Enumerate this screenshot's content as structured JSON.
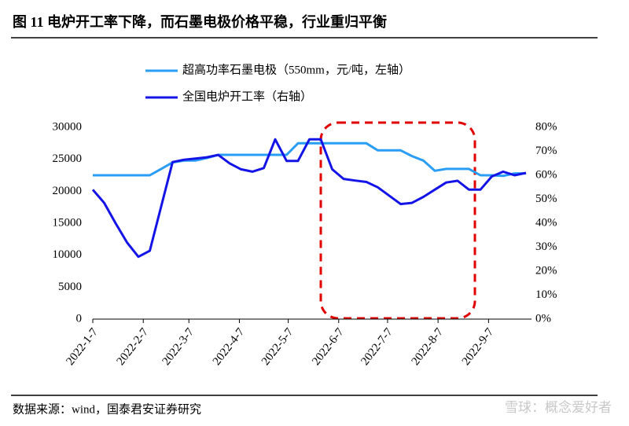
{
  "chart_data": {
    "type": "line",
    "title": "图 11 电炉开工率下降，而石墨电极价格平稳，行业重归平衡",
    "source": "数据来源：wind，国泰君安证券研究",
    "watermark": "雪球：概念爱好者",
    "x": [
      "2022-1-7",
      "2022-1-14",
      "2022-1-21",
      "2022-1-28",
      "2022-2-4",
      "2022-2-11",
      "2022-2-18",
      "2022-2-25",
      "2022-3-4",
      "2022-3-11",
      "2022-3-18",
      "2022-3-25",
      "2022-4-1",
      "2022-4-8",
      "2022-4-15",
      "2022-4-22",
      "2022-4-29",
      "2022-5-6",
      "2022-5-13",
      "2022-5-20",
      "2022-5-27",
      "2022-6-3",
      "2022-6-10",
      "2022-6-17",
      "2022-6-24",
      "2022-7-1",
      "2022-7-8",
      "2022-7-15",
      "2022-7-22",
      "2022-7-29",
      "2022-8-5",
      "2022-8-12",
      "2022-8-19",
      "2022-8-26",
      "2022-9-2",
      "2022-9-9",
      "2022-9-16",
      "2022-9-23",
      "2022-9-30"
    ],
    "xlim": [
      "2022-1-7",
      "2022-9-30"
    ],
    "xticks": [
      "2022-1-7",
      "2022-2-7",
      "2022-3-7",
      "2022-4-7",
      "2022-5-7",
      "2022-6-7",
      "2022-7-7",
      "2022-8-7",
      "2022-9-7"
    ],
    "ylim": [
      0,
      30000
    ],
    "yticks": [
      0,
      5000,
      10000,
      15000,
      20000,
      25000,
      30000
    ],
    "y2lim": [
      0,
      80
    ],
    "y2ticks": [
      {
        "value": 0,
        "label": "0%"
      },
      {
        "value": 10,
        "label": "10%"
      },
      {
        "value": 20,
        "label": "20%"
      },
      {
        "value": 30,
        "label": "30%"
      },
      {
        "value": 40,
        "label": "40%"
      },
      {
        "value": 50,
        "label": "50%"
      },
      {
        "value": 60,
        "label": "60%"
      },
      {
        "value": 70,
        "label": "70%"
      },
      {
        "value": 80,
        "label": "80%"
      }
    ],
    "series": [
      {
        "name": "超高功率石墨电极（550mm，元/吨，左轴）",
        "color": "#2a9df4",
        "values": [
          22500,
          22500,
          22500,
          22500,
          22500,
          22500,
          23500,
          24500,
          24800,
          24800,
          25200,
          25700,
          25700,
          25700,
          25700,
          25700,
          25700,
          25700,
          27500,
          27500,
          27500,
          27500,
          27500,
          27500,
          27500,
          26400,
          26400,
          26400,
          25500,
          24800,
          23200,
          23500,
          23500,
          23500,
          22500,
          22500,
          22400,
          22800,
          22800
        ]
      },
      {
        "name": "全国电炉开工率（右轴）",
        "color": "#1414e6",
        "axis": "y2",
        "values": [
          54,
          48.5,
          40,
          32,
          26,
          28.5,
          47,
          65.5,
          66.5,
          67,
          67.5,
          68.5,
          65,
          62.5,
          61.5,
          63,
          75,
          66,
          66,
          75,
          75,
          62.5,
          58.5,
          57.8,
          57.2,
          55,
          51.5,
          48,
          48.5,
          51,
          54,
          57,
          57.7,
          54,
          54,
          59.5,
          61.5,
          60,
          61
        ]
      }
    ]
  }
}
